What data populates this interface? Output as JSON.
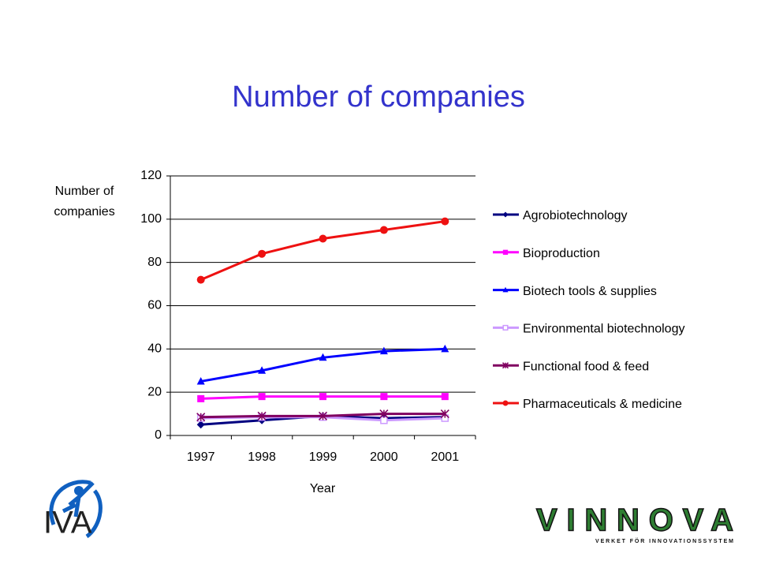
{
  "chart_data": {
    "type": "line",
    "title": "Number of companies",
    "y_label": "Number of companies",
    "x_label": "Year",
    "categories": [
      "1997",
      "1998",
      "1999",
      "2000",
      "2001"
    ],
    "series": [
      {
        "name": "Agrobiotechnology",
        "color": "#000080",
        "marker": "diamond",
        "values": [
          5,
          7,
          9,
          8,
          8.5
        ]
      },
      {
        "name": "Bioproduction",
        "color": "#ff00ff",
        "marker": "square",
        "values": [
          17,
          18,
          18,
          18,
          18
        ]
      },
      {
        "name": "Biotech tools & supplies",
        "color": "#0000ff",
        "marker": "triangle",
        "values": [
          25,
          30,
          36,
          39,
          40
        ]
      },
      {
        "name": "Environmental biotechnology",
        "color": "#cc99ff",
        "marker": "square-open",
        "values": [
          8,
          8.5,
          8.5,
          7,
          8
        ]
      },
      {
        "name": "Functional food & feed",
        "color": "#800060",
        "marker": "star",
        "values": [
          8.5,
          9,
          9,
          10,
          10
        ]
      },
      {
        "name": "Pharmaceuticals & medicine",
        "color": "#ee1111",
        "marker": "circle",
        "values": [
          72,
          84,
          91,
          95,
          99
        ]
      }
    ],
    "ylim": [
      0,
      120
    ],
    "yticks": [
      0,
      20,
      40,
      60,
      80,
      100,
      120
    ],
    "grid": true,
    "legend": "right"
  },
  "logos": {
    "left": "IVA",
    "right": "VINNOVA",
    "right_tagline": "VERKET FÖR INNOVATIONSSYSTEM"
  }
}
